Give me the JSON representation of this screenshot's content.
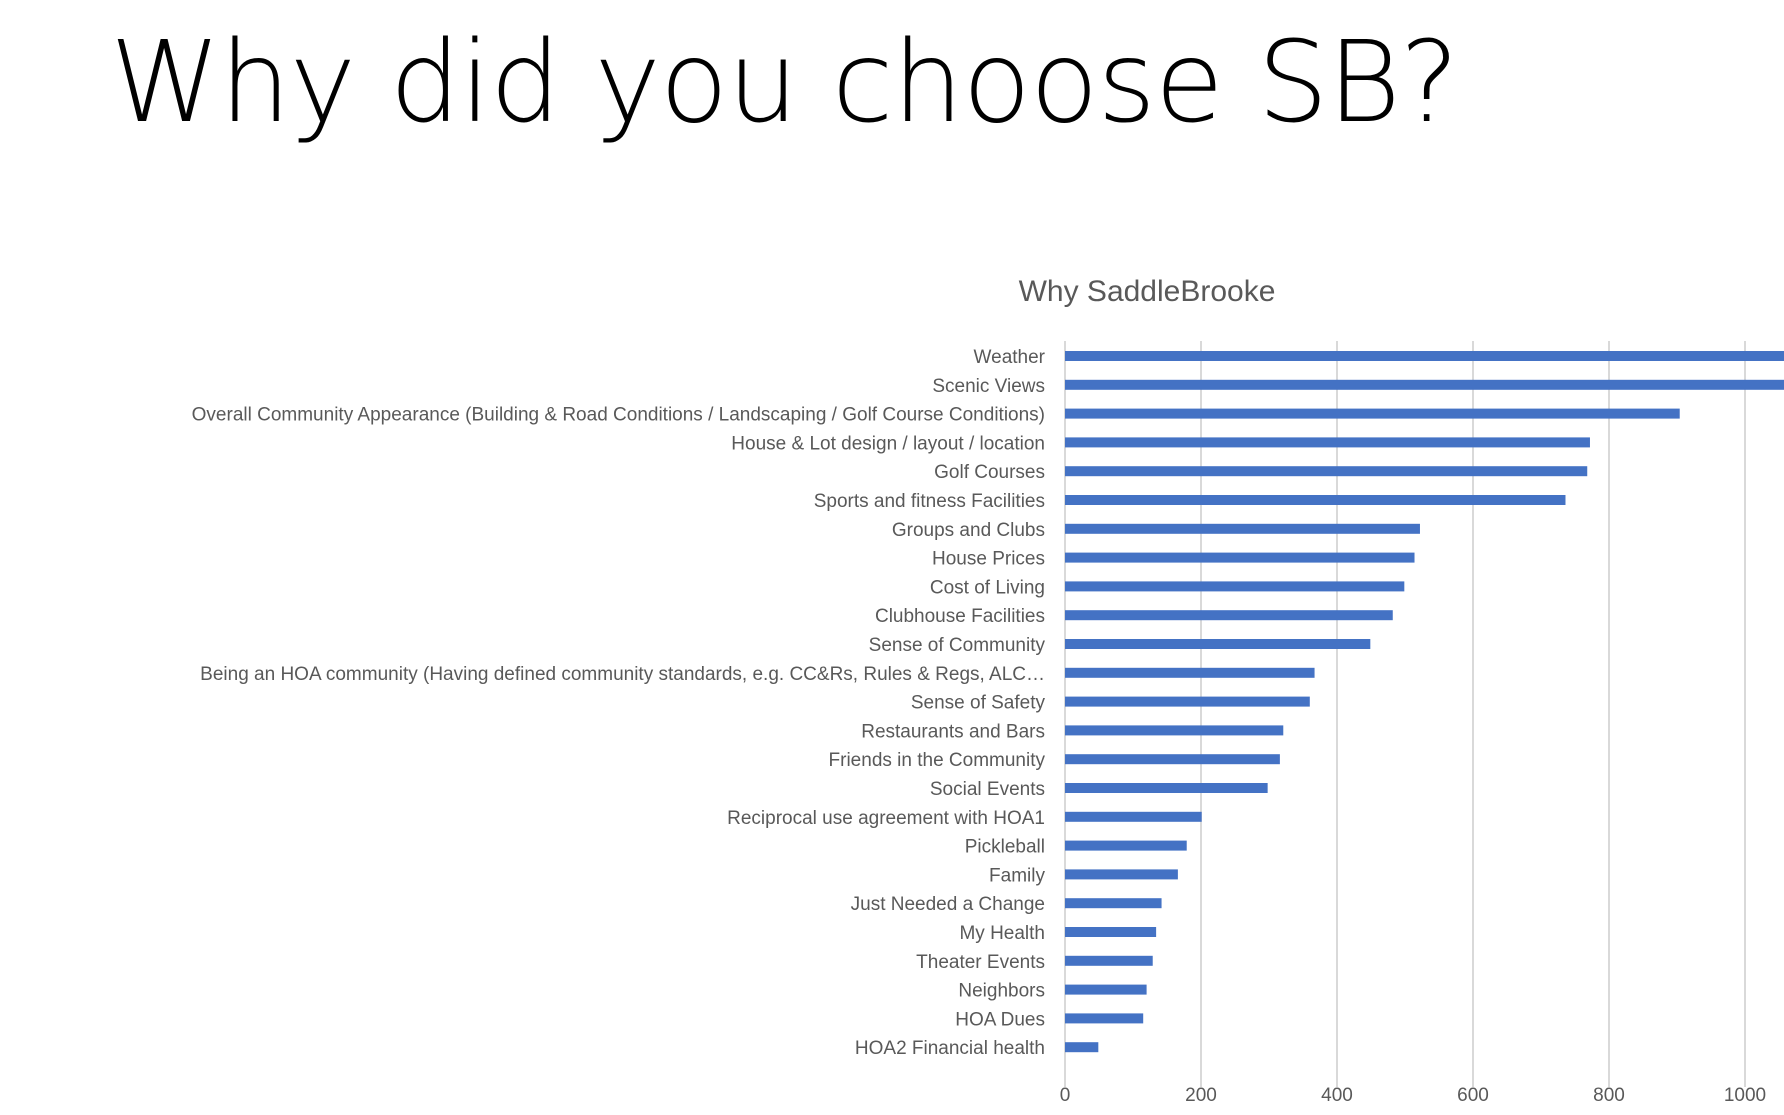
{
  "slide": {
    "title": "Why did you choose SB?"
  },
  "chart_data": {
    "type": "bar",
    "orientation": "horizontal",
    "title": "Why SaddleBrooke",
    "xlabel": "",
    "ylabel": "",
    "xlim": [
      0,
      1060
    ],
    "xticks": [
      0,
      200,
      400,
      600,
      800,
      1000
    ],
    "grid": true,
    "bar_color": "#4472C4",
    "categories": [
      "Weather",
      "Scenic Views",
      "Overall Community Appearance (Building & Road Conditions / Landscaping / Golf Course Conditions)",
      "House & Lot design / layout / location",
      "Golf Courses",
      "Sports and fitness Facilities",
      "Groups and Clubs",
      "House Prices",
      "Cost of Living",
      "Clubhouse Facilities",
      "Sense of Community",
      "Being an HOA community (Having defined community standards, e.g. CC&Rs, Rules & Regs, ALC…",
      "Sense of Safety",
      "Restaurants and Bars",
      "Friends in the Community",
      "Social Events",
      "Reciprocal use agreement with HOA1",
      "Pickleball",
      "Family",
      "Just Needed a Change",
      "My Health",
      "Theater Events",
      "Neighbors",
      "HOA Dues",
      "HOA2 Financial health"
    ],
    "values": [
      1060,
      1060,
      904,
      772,
      768,
      736,
      522,
      514,
      499,
      482,
      449,
      367,
      360,
      321,
      316,
      298,
      201,
      179,
      166,
      142,
      134,
      129,
      120,
      115,
      49
    ]
  }
}
